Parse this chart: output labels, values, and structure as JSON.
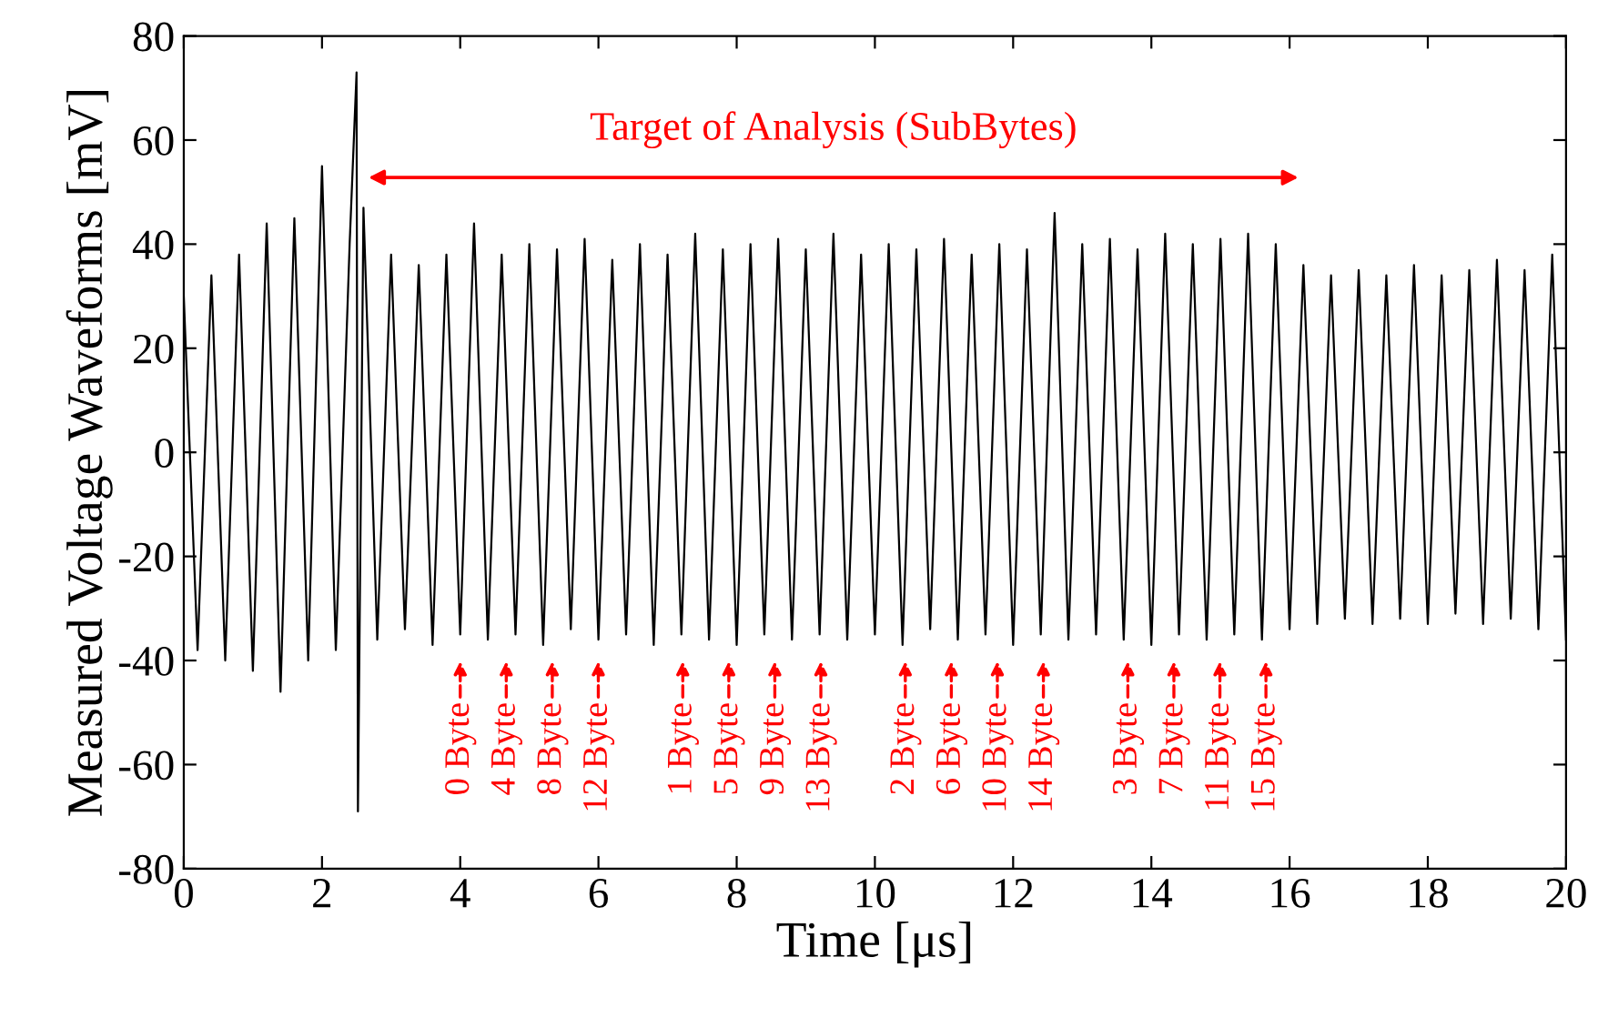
{
  "chart_data": {
    "type": "line",
    "xlabel": "Time [μs]",
    "ylabel": "Measured Voltage Waveforms [mV]",
    "xlim": [
      0,
      20
    ],
    "ylim": [
      -80,
      80
    ],
    "xticks": [
      0,
      2,
      4,
      6,
      8,
      10,
      12,
      14,
      16,
      18,
      20
    ],
    "yticks": [
      -80,
      -60,
      -40,
      -20,
      0,
      20,
      40,
      60,
      80
    ],
    "grid": false,
    "legend": false,
    "series": [
      {
        "color": "#000000",
        "x": [
          0.0,
          0.2,
          0.4,
          0.6,
          0.8,
          1.0,
          1.2,
          1.4,
          1.6,
          1.8,
          2.0,
          2.2,
          2.4,
          2.5,
          2.52,
          2.6,
          2.8,
          3.0,
          3.2,
          3.4,
          3.6,
          3.8,
          4.0,
          4.2,
          4.4,
          4.6,
          4.8,
          5.0,
          5.2,
          5.4,
          5.6,
          5.8,
          6.0,
          6.2,
          6.4,
          6.6,
          6.8,
          7.0,
          7.2,
          7.4,
          7.6,
          7.8,
          8.0,
          8.2,
          8.4,
          8.6,
          8.8,
          9.0,
          9.2,
          9.4,
          9.6,
          9.8,
          10.0,
          10.2,
          10.4,
          10.6,
          10.8,
          11.0,
          11.2,
          11.4,
          11.6,
          11.8,
          12.0,
          12.2,
          12.4,
          12.6,
          12.8,
          13.0,
          13.2,
          13.4,
          13.6,
          13.8,
          14.0,
          14.2,
          14.4,
          14.6,
          14.8,
          15.0,
          15.2,
          15.4,
          15.6,
          15.8,
          16.0,
          16.2,
          16.4,
          16.6,
          16.8,
          17.0,
          17.2,
          17.4,
          17.6,
          17.8,
          18.0,
          18.2,
          18.4,
          18.6,
          18.8,
          19.0,
          19.2,
          19.4,
          19.6,
          19.8,
          20.0
        ],
        "values": [
          30,
          -38,
          34,
          -40,
          38,
          -42,
          44,
          -46,
          45,
          -40,
          55,
          -38,
          40,
          73,
          -69,
          47,
          -36,
          38,
          -34,
          36,
          -37,
          38,
          -35,
          44,
          -36,
          38,
          -35,
          40,
          -37,
          39,
          -34,
          41,
          -36,
          37,
          -35,
          40,
          -37,
          38,
          -35,
          42,
          -36,
          39,
          -37,
          40,
          -35,
          41,
          -36,
          39,
          -35,
          42,
          -36,
          38,
          -35,
          40,
          -37,
          39,
          -34,
          41,
          -36,
          38,
          -35,
          40,
          -37,
          39,
          -35,
          46,
          -36,
          40,
          -35,
          41,
          -36,
          39,
          -37,
          42,
          -35,
          40,
          -36,
          41,
          -35,
          42,
          -36,
          40,
          -34,
          36,
          -33,
          34,
          -32,
          35,
          -33,
          34,
          -32,
          36,
          -33,
          34,
          -31,
          35,
          -33,
          37,
          -32,
          35,
          -34,
          38,
          -36
        ]
      }
    ],
    "annotations": [
      "Target of Analysis (SubBytes)",
      "0 Byte",
      "4 Byte",
      "8 Byte",
      "12 Byte",
      "1 Byte",
      "5 Byte",
      "9 Byte",
      "13 Byte",
      "2 Byte",
      "6 Byte",
      "10 Byte",
      "14 Byte",
      "3 Byte",
      "7 Byte",
      "11 Byte",
      "15 Byte"
    ]
  }
}
